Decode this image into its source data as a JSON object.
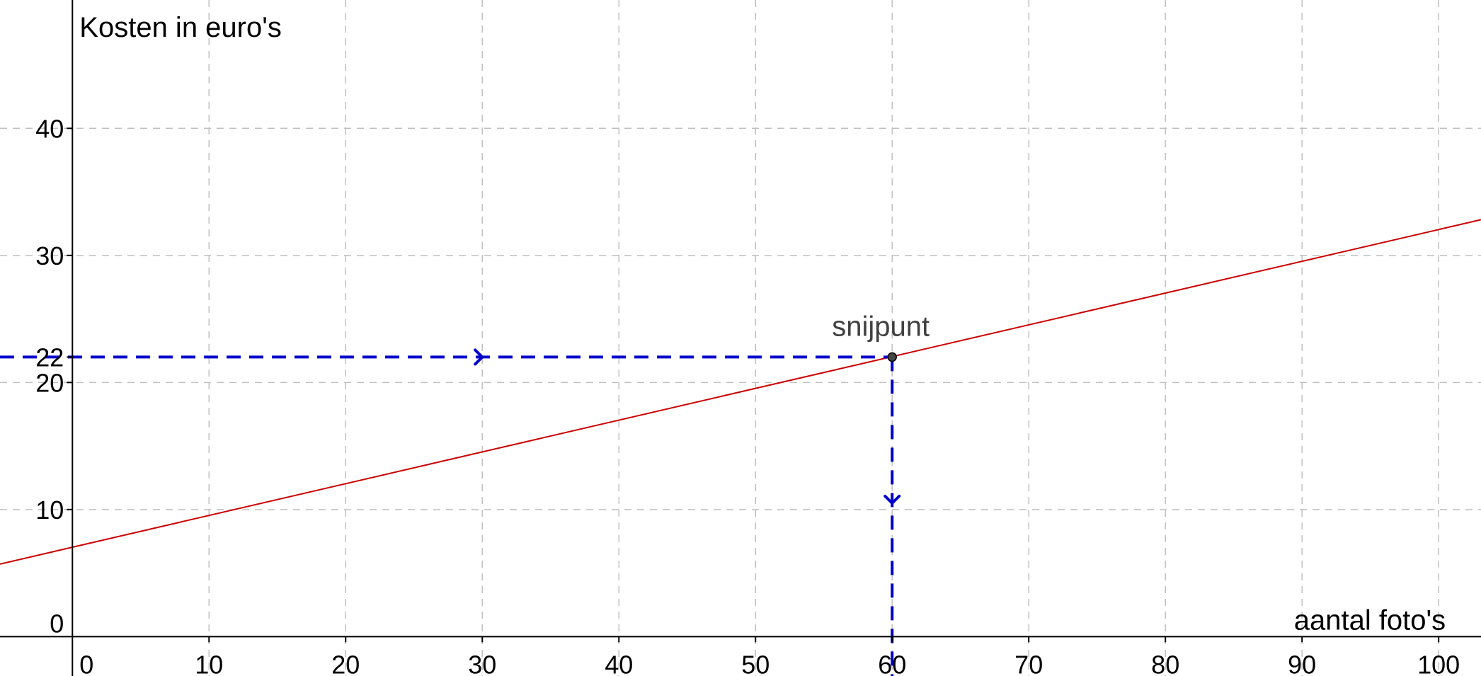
{
  "chart_data": {
    "type": "line",
    "xlabel": "aantal foto's",
    "ylabel": "Kosten in euro's",
    "xlim": [
      -5.3,
      103.1
    ],
    "ylim": [
      -3.1,
      50.1
    ],
    "x_ticks": [
      0,
      10,
      20,
      30,
      40,
      50,
      60,
      70,
      80,
      90,
      100
    ],
    "y_ticks": [
      0,
      10,
      20,
      22,
      30,
      40
    ],
    "x_tick_labels": [
      "0",
      "10",
      "20",
      "30",
      "40",
      "50",
      "60",
      "70",
      "80",
      "90",
      "100"
    ],
    "y_tick_labels": [
      "0",
      "10",
      "20",
      "22",
      "30",
      "40"
    ],
    "x_grid": [
      0,
      10,
      20,
      30,
      40,
      50,
      60,
      70,
      80,
      90,
      100
    ],
    "y_grid": [
      10,
      20,
      30,
      40
    ],
    "grid": true,
    "series": [
      {
        "x": [
          -5.3,
          103.1
        ],
        "y": [
          5.71,
          32.81
        ],
        "color": "#cc0000"
      }
    ],
    "intersection": {
      "label": "snijpunt",
      "x": 60,
      "y": 22
    },
    "guides": [
      {
        "from": [
          -5.3,
          22
        ],
        "to": [
          60,
          22
        ],
        "arrow_at": [
          30,
          22
        ],
        "direction": "right"
      },
      {
        "from": [
          60,
          22
        ],
        "to": [
          60,
          -3.1
        ],
        "arrow_at": [
          60,
          10.5
        ],
        "direction": "down"
      }
    ],
    "colors": {
      "line": "#cc0000",
      "guide": "#0000cc",
      "grid": "#c0c0c0",
      "axis": "#000000"
    }
  }
}
